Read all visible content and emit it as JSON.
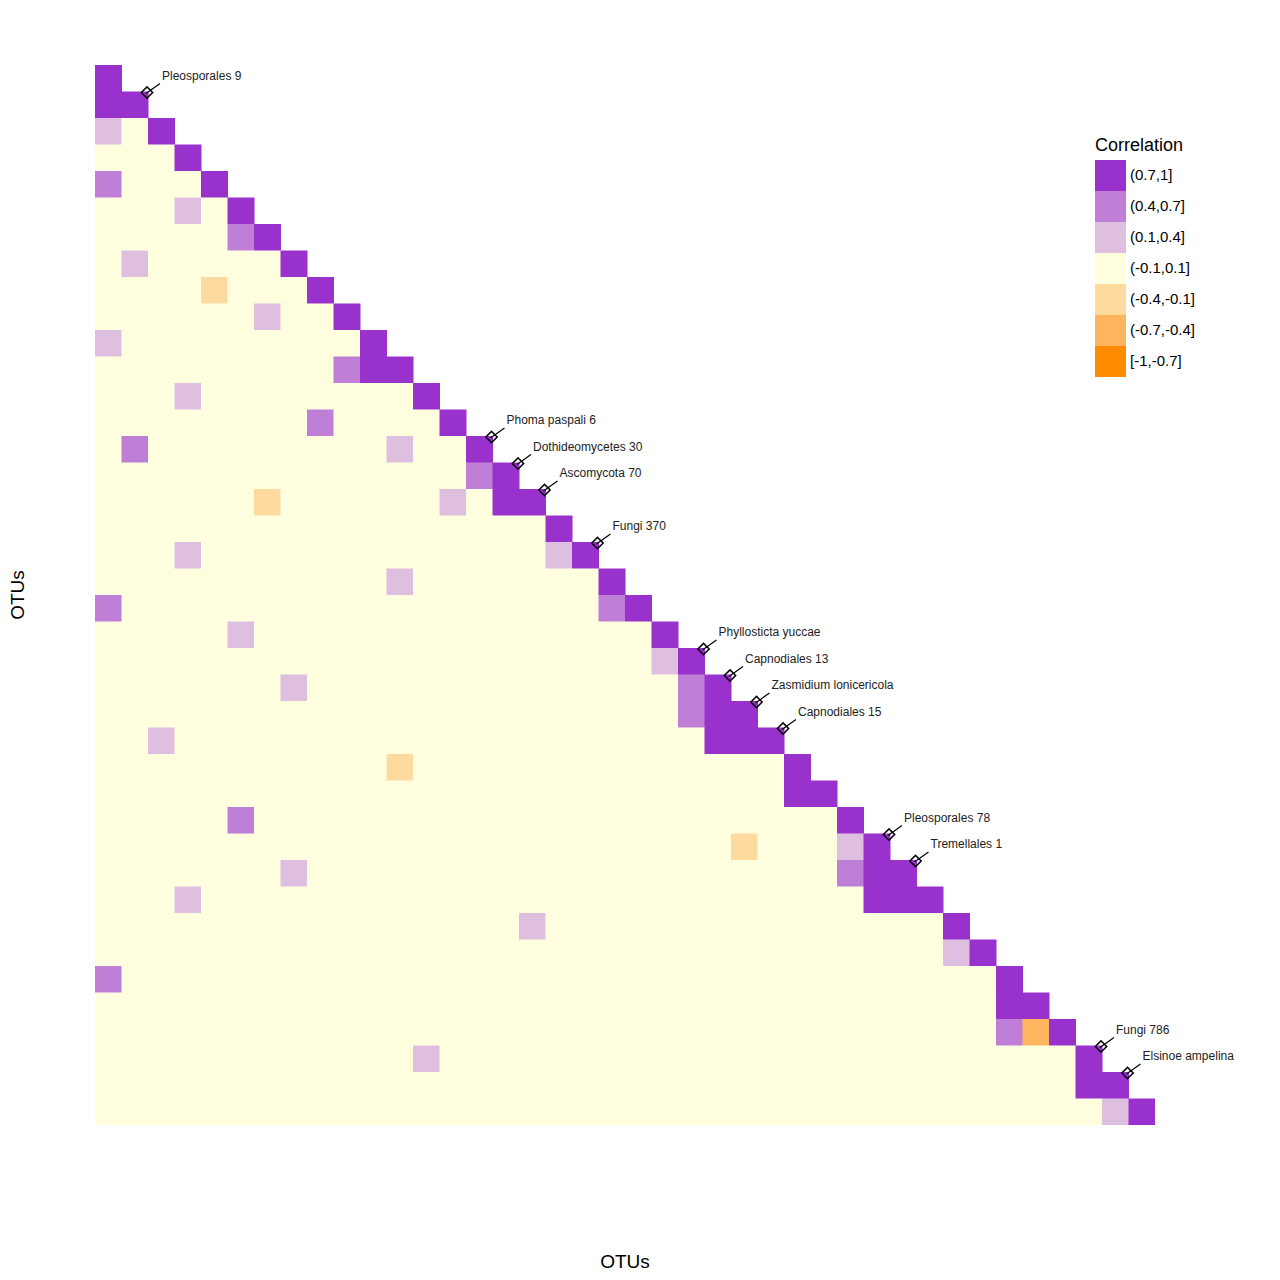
{
  "chart_data": {
    "type": "heatmap",
    "x_label": "OTUs",
    "y_label": "OTUs",
    "tick_labels": false,
    "legend": "right",
    "legend_title": "Correlation",
    "color_bins": [
      {
        "label": "(0.7,1]",
        "lo": 0.7,
        "hi": 1,
        "color": "#9932cc"
      },
      {
        "label": "(0.4,0.7]",
        "lo": 0.4,
        "hi": 0.7,
        "color": "#bf7fd6"
      },
      {
        "label": "(0.1,0.4]",
        "lo": 0.1,
        "hi": 0.4,
        "color": "#dfbfdf"
      },
      {
        "label": "(-0.1,0.1]",
        "lo": -0.1,
        "hi": 0.1,
        "color": "#ffffe0"
      },
      {
        "label": "(-0.4,-0.1]",
        "lo": -0.4,
        "hi": -0.1,
        "color": "#ffda9e"
      },
      {
        "label": "(-0.7,-0.4]",
        "lo": -0.7,
        "hi": -0.4,
        "color": "#ffb55e"
      },
      {
        "label": "[-1,-0.7]",
        "lo": -1,
        "hi": -0.7,
        "color": "#ff8c00"
      }
    ],
    "cells": [
      [
        1
      ],
      [
        0.85,
        1
      ],
      [
        0.2,
        0,
        1
      ],
      [
        0,
        0,
        0,
        1
      ],
      [
        0.5,
        0,
        0,
        0,
        1
      ],
      [
        0,
        0,
        0,
        0.2,
        0,
        1
      ],
      [
        0,
        0,
        0,
        0,
        0,
        0.5,
        1
      ],
      [
        0,
        0.2,
        0,
        0,
        0,
        0,
        0,
        1
      ],
      [
        0,
        0,
        0,
        0,
        -0.2,
        0,
        0,
        0,
        1
      ],
      [
        0,
        0,
        0,
        0,
        0,
        0,
        0.2,
        0,
        0,
        1
      ],
      [
        0.2,
        0,
        0,
        0,
        0,
        0,
        0,
        0,
        0,
        0,
        1
      ],
      [
        0,
        0,
        0,
        0,
        0,
        0,
        0,
        0,
        0,
        0.5,
        0.85,
        1
      ],
      [
        0,
        0,
        0,
        0.2,
        0,
        0,
        0,
        0,
        0,
        0,
        0,
        0,
        1
      ],
      [
        0,
        0,
        0,
        0,
        0,
        0,
        0,
        0,
        0.5,
        0,
        0,
        0,
        0,
        1
      ],
      [
        0,
        0.5,
        0,
        0,
        0,
        0,
        0,
        0,
        0,
        0,
        0,
        0.2,
        0,
        0,
        1
      ],
      [
        0,
        0,
        0,
        0,
        0,
        0,
        0,
        0,
        0,
        0,
        0,
        0,
        0,
        0,
        0.5,
        1
      ],
      [
        0,
        0,
        0,
        0,
        0,
        0,
        -0.2,
        0,
        0,
        0,
        0,
        0,
        0,
        0.2,
        0,
        0.85,
        1
      ],
      [
        0,
        0,
        0,
        0,
        0,
        0,
        0,
        0,
        0,
        0,
        0,
        0,
        0,
        0,
        0,
        0,
        0,
        1
      ],
      [
        0,
        0,
        0,
        0.2,
        0,
        0,
        0,
        0,
        0,
        0,
        0,
        0,
        0,
        0,
        0,
        0,
        0,
        0.2,
        1
      ],
      [
        0,
        0,
        0,
        0,
        0,
        0,
        0,
        0,
        0,
        0,
        0,
        0.2,
        0,
        0,
        0,
        0,
        0,
        0,
        0,
        1
      ],
      [
        0.5,
        0,
        0,
        0,
        0,
        0,
        0,
        0,
        0,
        0,
        0,
        0,
        0,
        0,
        0,
        0,
        0,
        0,
        0,
        0.5,
        1
      ],
      [
        0,
        0,
        0,
        0,
        0,
        0.2,
        0,
        0,
        0,
        0,
        0,
        0,
        0,
        0,
        0,
        0,
        0,
        0,
        0,
        0,
        0,
        1
      ],
      [
        0,
        0,
        0,
        0,
        0,
        0,
        0,
        0,
        0,
        0,
        0,
        0,
        0,
        0,
        0,
        0,
        0,
        0,
        0,
        0,
        0,
        0.2,
        1
      ],
      [
        0,
        0,
        0,
        0,
        0,
        0,
        0,
        0.2,
        0,
        0,
        0,
        0,
        0,
        0,
        0,
        0,
        0,
        0,
        0,
        0,
        0,
        0,
        0.5,
        1
      ],
      [
        0,
        0,
        0,
        0,
        0,
        0,
        0,
        0,
        0,
        0,
        0,
        0,
        0,
        0,
        0,
        0,
        0,
        0,
        0,
        0,
        0,
        0,
        0.5,
        0.85,
        1
      ],
      [
        0,
        0,
        0.2,
        0,
        0,
        0,
        0,
        0,
        0,
        0,
        0,
        0,
        0,
        0,
        0,
        0,
        0,
        0,
        0,
        0,
        0,
        0,
        0,
        0.85,
        0.85,
        1
      ],
      [
        0,
        0,
        0,
        0,
        0,
        0,
        0,
        0,
        0,
        0,
        0,
        -0.2,
        0,
        0,
        0,
        0,
        0,
        0,
        0,
        0,
        0,
        0,
        0,
        0,
        0,
        0,
        1
      ],
      [
        0,
        0,
        0,
        0,
        0,
        0,
        0,
        0,
        0,
        0,
        0,
        0,
        0,
        0,
        0,
        0,
        0,
        0,
        0,
        0,
        0,
        0,
        0,
        0,
        0,
        0,
        0.85,
        1
      ],
      [
        0,
        0,
        0,
        0,
        0,
        0.5,
        0,
        0,
        0,
        0,
        0,
        0,
        0,
        0,
        0,
        0,
        0,
        0,
        0,
        0,
        0,
        0,
        0,
        0,
        0,
        0,
        0,
        0,
        1
      ],
      [
        0,
        0,
        0,
        0,
        0,
        0,
        0,
        0,
        0,
        0,
        0,
        0,
        0,
        0,
        0,
        0,
        0,
        0,
        0,
        0,
        0,
        0,
        0,
        0,
        -0.2,
        0,
        0,
        0,
        0.2,
        1
      ],
      [
        0,
        0,
        0,
        0,
        0,
        0,
        0,
        0.2,
        0,
        0,
        0,
        0,
        0,
        0,
        0,
        0,
        0,
        0,
        0,
        0,
        0,
        0,
        0,
        0,
        0,
        0,
        0,
        0,
        0.5,
        0.85,
        1
      ],
      [
        0,
        0,
        0,
        0.2,
        0,
        0,
        0,
        0,
        0,
        0,
        0,
        0,
        0,
        0,
        0,
        0,
        0,
        0,
        0,
        0,
        0,
        0,
        0,
        0,
        0,
        0,
        0,
        0,
        0,
        0.85,
        0.85,
        1
      ],
      [
        0,
        0,
        0,
        0,
        0,
        0,
        0,
        0,
        0,
        0,
        0,
        0,
        0,
        0,
        0,
        0,
        0.2,
        0,
        0,
        0,
        0,
        0,
        0,
        0,
        0,
        0,
        0,
        0,
        0,
        0,
        0,
        0,
        1
      ],
      [
        0,
        0,
        0,
        0,
        0,
        0,
        0,
        0,
        0,
        0,
        0,
        0,
        0,
        0,
        0,
        0,
        0,
        0,
        0,
        0,
        0,
        0,
        0,
        0,
        0,
        0,
        0,
        0,
        0,
        0,
        0,
        0,
        0.2,
        1
      ],
      [
        0.5,
        0,
        0,
        0,
        0,
        0,
        0,
        0,
        0,
        0,
        0,
        0,
        0,
        0,
        0,
        0,
        0,
        0,
        0,
        0,
        0,
        0,
        0,
        0,
        0,
        0,
        0,
        0,
        0,
        0,
        0,
        0,
        0,
        0,
        1
      ],
      [
        0,
        0,
        0,
        0,
        0,
        0,
        0,
        0,
        0,
        0,
        0,
        0,
        0,
        0,
        0,
        0,
        0,
        0,
        0,
        0,
        0,
        0,
        0,
        0,
        0,
        0,
        0,
        0,
        0,
        0,
        0,
        0,
        0,
        0,
        0.85,
        1
      ],
      [
        0,
        0,
        0,
        0,
        0,
        0,
        0,
        0,
        0,
        0,
        0,
        0,
        0,
        0,
        0,
        0,
        0,
        0,
        0,
        0,
        0,
        0,
        0,
        0,
        0,
        0,
        0,
        0,
        0,
        0,
        0,
        0,
        0,
        0,
        0.5,
        -0.5,
        1
      ],
      [
        0,
        0,
        0,
        0,
        0,
        0,
        0,
        0,
        0,
        0,
        0,
        0,
        0.2,
        0,
        0,
        0,
        0,
        0,
        0,
        0,
        0,
        0,
        0,
        0,
        0,
        0,
        0,
        0,
        0,
        0,
        0,
        0,
        0,
        0,
        0,
        0,
        0,
        1
      ],
      [
        0,
        0,
        0,
        0,
        0,
        0,
        0,
        0,
        0,
        0,
        0,
        0,
        0,
        0,
        0,
        0,
        0,
        0,
        0,
        0,
        0,
        0,
        0,
        0,
        0,
        0,
        0,
        0,
        0,
        0,
        0,
        0,
        0,
        0,
        0,
        0,
        0,
        0.85,
        1
      ],
      [
        0,
        0,
        0,
        0,
        0,
        0,
        0,
        0,
        0,
        0,
        0,
        0,
        0,
        0,
        0,
        0,
        0,
        0,
        0,
        0,
        0,
        0,
        0,
        0,
        0,
        0,
        0,
        0,
        0,
        0,
        0,
        0,
        0,
        0,
        0,
        0,
        0,
        0,
        0.2,
        1
      ]
    ],
    "annotations": [
      {
        "text": "Pleosporales 9",
        "otu": 1
      },
      {
        "text": "Phoma paspali 6",
        "otu": 14
      },
      {
        "text": "Dothideomycetes 30",
        "otu": 15
      },
      {
        "text": "Ascomycota 70",
        "otu": 16
      },
      {
        "text": "Fungi 370",
        "otu": 18
      },
      {
        "text": "Phyllosticta yuccae",
        "otu": 22
      },
      {
        "text": "Capnodiales 13",
        "otu": 23
      },
      {
        "text": "Zasmidium lonicericola",
        "otu": 24
      },
      {
        "text": "Capnodiales 15",
        "otu": 25
      },
      {
        "text": "Pleosporales 78",
        "otu": 29
      },
      {
        "text": "Tremellales 1",
        "otu": 30
      },
      {
        "text": "Fungi 786",
        "otu": 37
      },
      {
        "text": "Elsinoe ampelina",
        "otu": 38
      }
    ]
  }
}
